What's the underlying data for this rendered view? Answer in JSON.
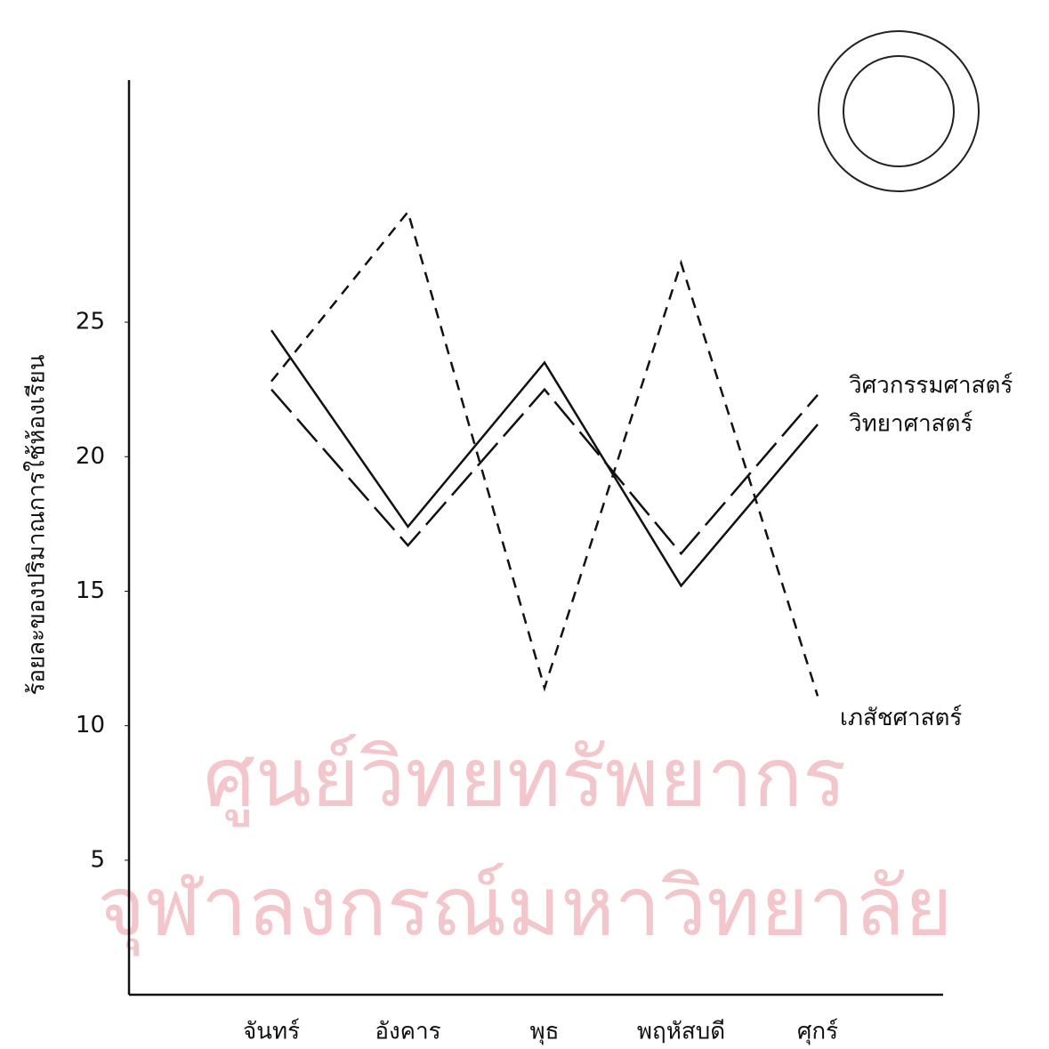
{
  "chart_data": {
    "type": "line",
    "y_label": "ร้อยละของปริมาณการใช้ห้องเรียน",
    "categories": [
      "จันทร์",
      "อังคาร",
      "พุธ",
      "พฤหัสบดี",
      "ศุกร์"
    ],
    "series": [
      {
        "name": "วิศวกรรมศาสตร์",
        "color": "#111111",
        "style": "long-dash",
        "values": [
          22.5,
          16.7,
          22.5,
          16.4,
          22.3
        ]
      },
      {
        "name": "วิทยาศาสตร์",
        "color": "#111111",
        "style": "solid",
        "values": [
          24.7,
          17.4,
          23.5,
          15.2,
          21.2
        ]
      },
      {
        "name": "เภสัชศาสตร์",
        "color": "#111111",
        "style": "short-dash",
        "values": [
          22.8,
          29.1,
          11.4,
          27.2,
          11.1
        ]
      }
    ],
    "ylim": [
      0,
      34
    ],
    "yticks": [
      5,
      10,
      15,
      20,
      25
    ],
    "watermark": [
      "ศูนย์วิทยทรัพยากร",
      "จุฬาลงกรณ์มหาวิทยาลัย"
    ]
  }
}
